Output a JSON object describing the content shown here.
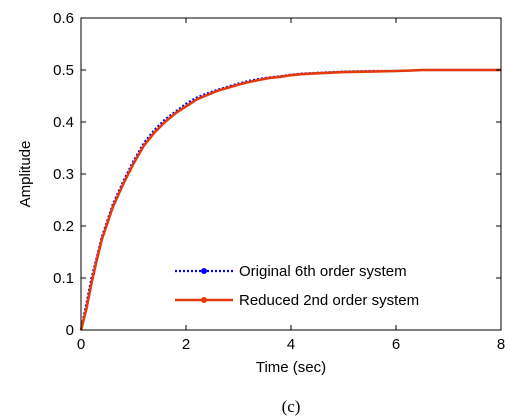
{
  "chart_data": {
    "type": "line",
    "xlabel": "Time (sec)",
    "ylabel": "Amplitude",
    "xlim": [
      0,
      8
    ],
    "ylim": [
      0,
      0.6
    ],
    "xticks": [
      0,
      2,
      4,
      6,
      8
    ],
    "yticks": [
      0,
      0.1,
      0.2,
      0.3,
      0.4,
      0.5,
      0.6
    ],
    "xtick_labels": [
      "0",
      "2",
      "4",
      "6",
      "8"
    ],
    "ytick_labels": [
      "0",
      "0.1",
      "0.2",
      "0.3",
      "0.4",
      "0.5",
      "0.6"
    ],
    "grid": false,
    "legend_position": "bottom-right",
    "caption": "(c)",
    "x": [
      0,
      0.1,
      0.2,
      0.3,
      0.4,
      0.5,
      0.6,
      0.8,
      1.0,
      1.2,
      1.4,
      1.6,
      1.8,
      2.0,
      2.2,
      2.4,
      2.6,
      2.8,
      3.0,
      3.2,
      3.4,
      3.6,
      3.8,
      4.0,
      4.2,
      4.4,
      4.6,
      4.8,
      5.0,
      5.5,
      6.0,
      6.3,
      6.5,
      7.0,
      7.5,
      8.0
    ],
    "series": [
      {
        "name": "Original 6th order system",
        "color": "#0000ff",
        "style": "dotted",
        "values": [
          0,
          0.05,
          0.1,
          0.14,
          0.18,
          0.21,
          0.24,
          0.285,
          0.325,
          0.36,
          0.385,
          0.405,
          0.42,
          0.435,
          0.447,
          0.455,
          0.462,
          0.468,
          0.474,
          0.479,
          0.483,
          0.486,
          0.488,
          0.491,
          0.493,
          0.494,
          0.495,
          0.496,
          0.497,
          0.498,
          0.498,
          0.499,
          0.5,
          0.5,
          0.5,
          0.5
        ]
      },
      {
        "name": "Reduced 2nd order system",
        "color": "#e33a0d",
        "style": "solid",
        "values": [
          0,
          0.04,
          0.09,
          0.135,
          0.175,
          0.205,
          0.235,
          0.28,
          0.32,
          0.355,
          0.38,
          0.4,
          0.417,
          0.43,
          0.443,
          0.452,
          0.46,
          0.466,
          0.472,
          0.477,
          0.481,
          0.485,
          0.487,
          0.49,
          0.492,
          0.493,
          0.494,
          0.495,
          0.496,
          0.497,
          0.498,
          0.499,
          0.5,
          0.5,
          0.5,
          0.5
        ]
      }
    ]
  }
}
